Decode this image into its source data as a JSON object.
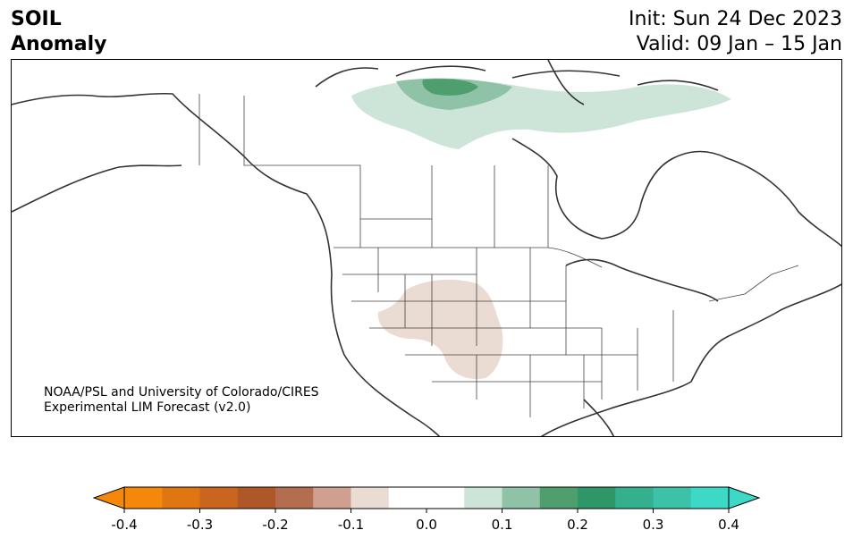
{
  "header": {
    "variable": "SOIL",
    "field": "Anomaly",
    "init": "Init: Sun 24 Dec 2023",
    "valid": "Valid: 09 Jan – 15 Jan"
  },
  "credit": {
    "line1": "NOAA/PSL and University of Colorado/CIRES",
    "line2": "Experimental LIM Forecast (v2.0)"
  },
  "colorbar": {
    "ticks": [
      "-0.4",
      "-0.3",
      "-0.2",
      "-0.1",
      "0.0",
      "0.1",
      "0.2",
      "0.3",
      "0.4"
    ],
    "under_color": "#f5880a",
    "over_color": "#3dd9c7",
    "colors": [
      "#f5880a",
      "#e07612",
      "#c9651e",
      "#ad5826",
      "#b36e50",
      "#cfa08f",
      "#eadbd3",
      "#ffffff",
      "#ffffff",
      "#cde5d9",
      "#8fc2a6",
      "#4f9e6d",
      "#2f9668",
      "#35b08e",
      "#3bc2a7",
      "#3dd9c7"
    ]
  },
  "map_regions": [
    {
      "name": "arctic-archipelago-wet",
      "value": 0.15
    },
    {
      "name": "baffin-wet",
      "value": 0.05
    },
    {
      "name": "southwest-dry",
      "value": -0.05
    }
  ]
}
